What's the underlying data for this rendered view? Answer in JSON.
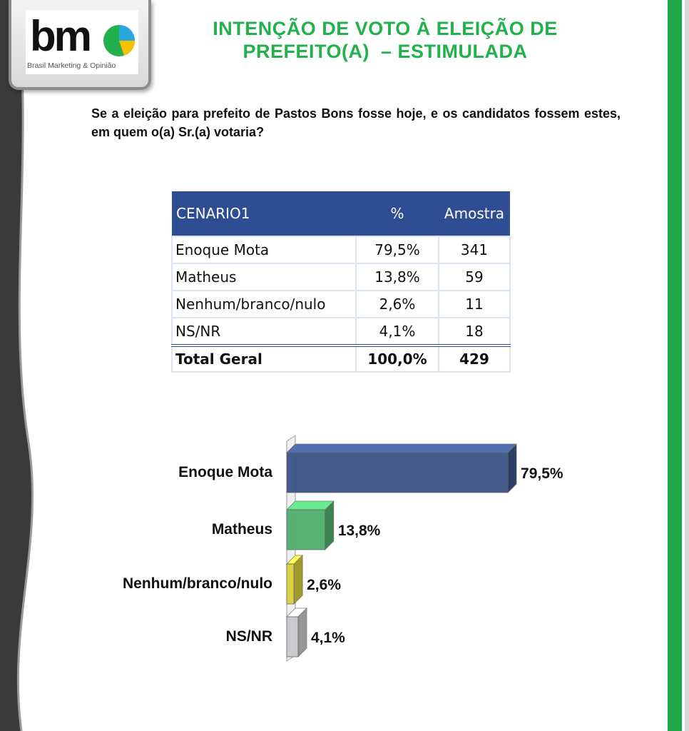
{
  "brand": {
    "logo_text": "bm",
    "tagline": "Brasil Marketing & Opinião",
    "colors": {
      "green": "#22b14c",
      "navy": "#2f4d93",
      "yellow": "#f2c200",
      "blue": "#29a8e0"
    }
  },
  "header": {
    "title_line1": "INTENÇÃO DE VOTO À ELEIÇÃO DE",
    "title_line2": "PREFEITO(A)  – ESTIMULADA"
  },
  "question": "Se a eleição para prefeito de Pastos Bons fosse hoje, e os candidatos fossem estes, em quem o(a) Sr.(a) votaria?",
  "table": {
    "headers": [
      "CENARIO1",
      "%",
      "Amostra"
    ],
    "rows": [
      [
        "Enoque Mota",
        "79,5%",
        "341"
      ],
      [
        "Matheus",
        "13,8%",
        "59"
      ],
      [
        "Nenhum/branco/nulo",
        "2,6%",
        "11"
      ],
      [
        "NS/NR",
        "4,1%",
        "18"
      ]
    ],
    "total": [
      "Total Geral",
      "100,0%",
      "429"
    ]
  },
  "chart_data": {
    "type": "bar",
    "orientation": "horizontal",
    "categories": [
      "Enoque Mota",
      "Matheus",
      "Nenhum/branco/nulo",
      "NS/NR"
    ],
    "values": [
      79.5,
      13.8,
      2.6,
      4.1
    ],
    "value_labels": [
      "79,5%",
      "13,8%",
      "2,6%",
      "4,1%"
    ],
    "colors": [
      "#3b5284",
      "#4fae6a",
      "#d8cf3a",
      "#c8c8cc"
    ],
    "title": "",
    "xlabel": "",
    "ylabel": "",
    "xlim": [
      0,
      80
    ],
    "grid": false,
    "legend": "none"
  }
}
